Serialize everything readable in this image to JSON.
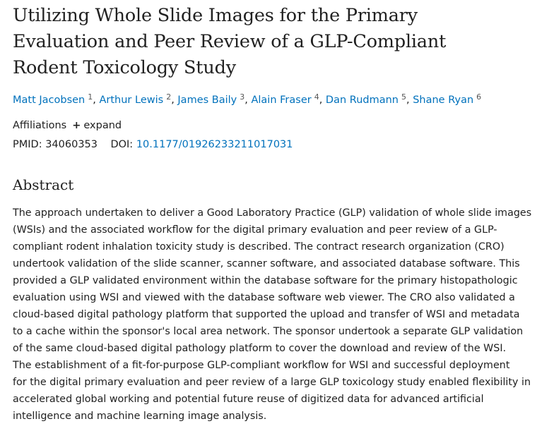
{
  "article": {
    "title_lines": [
      "Utilizing Whole Slide Images for the Primary",
      "Evaluation and Peer Review of a GLP-Compliant",
      "Rodent Toxicology Study"
    ],
    "authors": [
      {
        "name": "Matt Jacobsen",
        "affiliation": "1"
      },
      {
        "name": "Arthur Lewis",
        "affiliation": "2"
      },
      {
        "name": "James Baily",
        "affiliation": "3"
      },
      {
        "name": "Alain Fraser",
        "affiliation": "4"
      },
      {
        "name": "Dan Rudmann",
        "affiliation": "5"
      },
      {
        "name": "Shane Ryan",
        "affiliation": "6"
      }
    ],
    "affiliations_label": "Affiliations",
    "expand_label": "expand",
    "pmid_label": "PMID:",
    "pmid": "34060353",
    "doi_label": "DOI:",
    "doi": "10.1177/01926233211017031"
  },
  "abstract": {
    "heading": "Abstract",
    "lines": [
      "The approach undertaken to deliver a Good Laboratory Practice (GLP) validation of whole slide images",
      "(WSIs) and the associated workflow for the digital primary evaluation and peer review of a GLP-",
      "compliant rodent inhalation toxicity study is described. The contract research organization (CRO)",
      "undertook validation of the slide scanner, scanner software, and associated database software. This",
      "provided a GLP validated environment within the database software for the primary histopathologic",
      "evaluation using WSI and viewed with the database software web viewer. The CRO also validated a",
      "cloud-based digital pathology platform that supported the upload and transfer of WSI and metadata",
      "to a cache within the sponsor's local area network. The sponsor undertook a separate GLP validation",
      "of the same cloud-based digital pathology platform to cover the download and review of the WSI.",
      "The establishment of a fit-for-purpose GLP-compliant workflow for WSI and successful deployment",
      "for the digital primary evaluation and peer review of a large GLP toxicology study enabled flexibility in",
      "accelerated global working and potential future reuse of digitized data for advanced artificial",
      "intelligence and machine learning image analysis."
    ]
  }
}
